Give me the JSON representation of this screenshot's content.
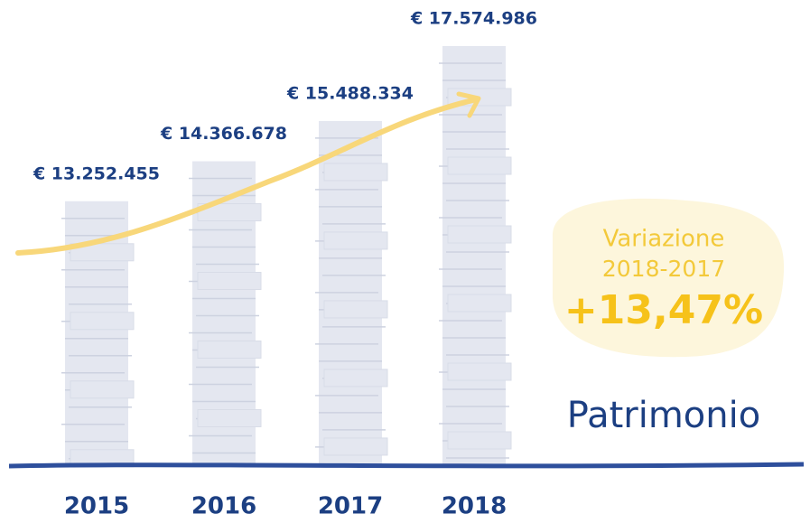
{
  "chart_data": {
    "type": "bar",
    "title": "Patrimonio",
    "categories": [
      "2015",
      "2016",
      "2017",
      "2018"
    ],
    "values": [
      13252455,
      14366678,
      15488334,
      17574986
    ],
    "value_labels": [
      "€ 13.252.455",
      "€ 14.366.678",
      "€ 15.488.334",
      "€ 17.574.986"
    ],
    "color": "#e4e7f0",
    "ylim": [
      5900000,
      17600000
    ],
    "annotations": [
      "Variazione",
      "2018-2017",
      "+13,47%"
    ]
  }
}
